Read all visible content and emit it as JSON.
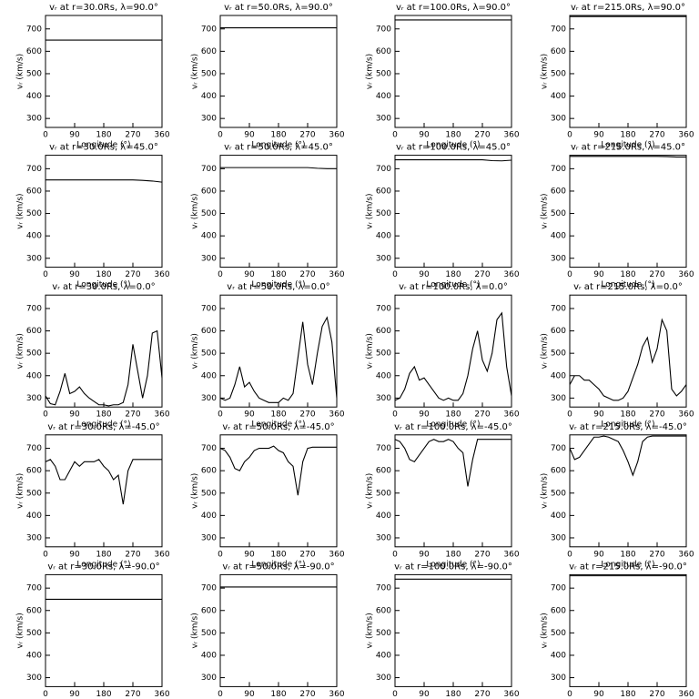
{
  "chart_data": [
    {
      "type": "line",
      "title": "vᵣ at r=30.0Rs, λ=90.0°",
      "xlabel": "Longitude (°)",
      "ylabel": "vᵣ (km/s)",
      "x": [
        0,
        360
      ],
      "values": [
        650,
        650
      ],
      "color": "#000000",
      "xlim": [
        0,
        360
      ],
      "ylim": [
        260,
        760
      ],
      "xticks": [
        0,
        90,
        180,
        270,
        360
      ],
      "yticks": [
        300,
        400,
        500,
        600,
        700
      ]
    },
    {
      "type": "line",
      "title": "vᵣ at r=50.0Rs, λ=90.0°",
      "xlabel": "Longitude (°)",
      "ylabel": "vᵣ (km/s)",
      "x": [
        0,
        360
      ],
      "values": [
        705,
        705
      ],
      "color": "#000000",
      "xlim": [
        0,
        360
      ],
      "ylim": [
        260,
        760
      ],
      "xticks": [
        0,
        90,
        180,
        270,
        360
      ],
      "yticks": [
        300,
        400,
        500,
        600,
        700
      ]
    },
    {
      "type": "line",
      "title": "vᵣ at r=100.0Rs, λ=90.0°",
      "xlabel": "Longitude (°)",
      "ylabel": "vᵣ (km/s)",
      "x": [
        0,
        360
      ],
      "values": [
        740,
        740
      ],
      "color": "#000000",
      "xlim": [
        0,
        360
      ],
      "ylim": [
        260,
        760
      ],
      "xticks": [
        0,
        90,
        180,
        270,
        360
      ],
      "yticks": [
        300,
        400,
        500,
        600,
        700
      ]
    },
    {
      "type": "line",
      "title": "vᵣ at r=215.0Rs, λ=90.0°",
      "xlabel": "Longitude (°)",
      "ylabel": "vᵣ (km/s)",
      "x": [
        0,
        360
      ],
      "values": [
        755,
        755
      ],
      "color": "#000000",
      "xlim": [
        0,
        360
      ],
      "ylim": [
        260,
        760
      ],
      "xticks": [
        0,
        90,
        180,
        270,
        360
      ],
      "yticks": [
        300,
        400,
        500,
        600,
        700
      ]
    },
    {
      "type": "line",
      "title": "vᵣ at r=30.0Rs, λ=45.0°",
      "xlabel": "Longitude (°)",
      "ylabel": "vᵣ (km/s)",
      "x": [
        0,
        90,
        180,
        270,
        300,
        330,
        360
      ],
      "values": [
        650,
        650,
        650,
        650,
        648,
        645,
        640
      ],
      "color": "#000000",
      "xlim": [
        0,
        360
      ],
      "ylim": [
        260,
        760
      ],
      "xticks": [
        0,
        90,
        180,
        270,
        360
      ],
      "yticks": [
        300,
        400,
        500,
        600,
        700
      ]
    },
    {
      "type": "line",
      "title": "vᵣ at r=50.0Rs, λ=45.0°",
      "xlabel": "Longitude (°)",
      "ylabel": "vᵣ (km/s)",
      "x": [
        0,
        90,
        180,
        270,
        300,
        330,
        360
      ],
      "values": [
        705,
        705,
        705,
        705,
        702,
        700,
        700
      ],
      "color": "#000000",
      "xlim": [
        0,
        360
      ],
      "ylim": [
        260,
        760
      ],
      "xticks": [
        0,
        90,
        180,
        270,
        360
      ],
      "yticks": [
        300,
        400,
        500,
        600,
        700
      ]
    },
    {
      "type": "line",
      "title": "vᵣ at r=100.0Rs, λ=45.0°",
      "xlabel": "Longitude (°)",
      "ylabel": "vᵣ (km/s)",
      "x": [
        0,
        90,
        180,
        270,
        300,
        330,
        360
      ],
      "values": [
        740,
        740,
        740,
        740,
        736,
        735,
        738
      ],
      "color": "#000000",
      "xlim": [
        0,
        360
      ],
      "ylim": [
        260,
        760
      ],
      "xticks": [
        0,
        90,
        180,
        270,
        360
      ],
      "yticks": [
        300,
        400,
        500,
        600,
        700
      ]
    },
    {
      "type": "line",
      "title": "vᵣ at r=215.0Rs, λ=45.0°",
      "xlabel": "Longitude (°)",
      "ylabel": "vᵣ (km/s)",
      "x": [
        0,
        90,
        180,
        270,
        300,
        330,
        360
      ],
      "values": [
        755,
        755,
        755,
        755,
        754,
        752,
        752
      ],
      "color": "#000000",
      "xlim": [
        0,
        360
      ],
      "ylim": [
        260,
        760
      ],
      "xticks": [
        0,
        90,
        180,
        270,
        360
      ],
      "yticks": [
        300,
        400,
        500,
        600,
        700
      ]
    },
    {
      "type": "line",
      "title": "vᵣ at r=30.0Rs, λ=0.0°",
      "xlabel": "Longitude (°)",
      "ylabel": "vᵣ (km/s)",
      "x": [
        0,
        15,
        30,
        45,
        60,
        75,
        90,
        105,
        120,
        135,
        150,
        165,
        180,
        195,
        210,
        225,
        240,
        255,
        270,
        285,
        300,
        315,
        330,
        345,
        360
      ],
      "values": [
        310,
        275,
        270,
        330,
        410,
        320,
        330,
        350,
        320,
        300,
        285,
        270,
        270,
        265,
        270,
        270,
        280,
        360,
        540,
        420,
        300,
        400,
        590,
        600,
        390
      ],
      "color": "#000000",
      "xlim": [
        0,
        360
      ],
      "ylim": [
        260,
        760
      ],
      "xticks": [
        0,
        90,
        180,
        270,
        360
      ],
      "yticks": [
        300,
        400,
        500,
        600,
        700
      ]
    },
    {
      "type": "line",
      "title": "vᵣ at r=50.0Rs, λ=0.0°",
      "xlabel": "Longitude (°)",
      "ylabel": "vᵣ (km/s)",
      "x": [
        0,
        15,
        30,
        45,
        60,
        75,
        90,
        105,
        120,
        135,
        150,
        165,
        180,
        195,
        210,
        225,
        240,
        255,
        270,
        285,
        300,
        315,
        330,
        345,
        360
      ],
      "values": [
        300,
        290,
        300,
        360,
        440,
        350,
        370,
        330,
        300,
        290,
        280,
        280,
        280,
        300,
        290,
        320,
        480,
        640,
        450,
        360,
        500,
        620,
        660,
        550,
        300
      ],
      "color": "#000000",
      "xlim": [
        0,
        360
      ],
      "ylim": [
        260,
        760
      ],
      "xticks": [
        0,
        90,
        180,
        270,
        360
      ],
      "yticks": [
        300,
        400,
        500,
        600,
        700
      ]
    },
    {
      "type": "line",
      "title": "vᵣ at r=100.0Rs, λ=0.0°",
      "xlabel": "Longitude (°)",
      "ylabel": "vᵣ (km/s)",
      "x": [
        0,
        15,
        30,
        45,
        60,
        75,
        90,
        105,
        120,
        135,
        150,
        165,
        180,
        195,
        210,
        225,
        240,
        255,
        270,
        285,
        300,
        315,
        330,
        345,
        360
      ],
      "values": [
        290,
        300,
        340,
        410,
        440,
        380,
        390,
        360,
        330,
        300,
        290,
        300,
        290,
        290,
        320,
        400,
        520,
        600,
        470,
        420,
        500,
        650,
        680,
        440,
        310
      ],
      "color": "#000000",
      "xlim": [
        0,
        360
      ],
      "ylim": [
        260,
        760
      ],
      "xticks": [
        0,
        90,
        180,
        270,
        360
      ],
      "yticks": [
        300,
        400,
        500,
        600,
        700
      ]
    },
    {
      "type": "line",
      "title": "vᵣ at r=215.0Rs, λ=0.0°",
      "xlabel": "Longitude (°)",
      "ylabel": "vᵣ (km/s)",
      "x": [
        0,
        15,
        30,
        45,
        60,
        75,
        90,
        105,
        120,
        135,
        150,
        165,
        180,
        195,
        210,
        225,
        240,
        255,
        270,
        285,
        300,
        315,
        330,
        345,
        360
      ],
      "values": [
        360,
        400,
        400,
        380,
        380,
        360,
        340,
        310,
        300,
        290,
        290,
        300,
        330,
        390,
        450,
        530,
        570,
        460,
        520,
        650,
        600,
        340,
        310,
        330,
        360
      ],
      "color": "#000000",
      "xlim": [
        0,
        360
      ],
      "ylim": [
        260,
        760
      ],
      "xticks": [
        0,
        90,
        180,
        270,
        360
      ],
      "yticks": [
        300,
        400,
        500,
        600,
        700
      ]
    },
    {
      "type": "line",
      "title": "vᵣ at r=30.0Rs, λ=-45.0°",
      "xlabel": "Longitude (°)",
      "ylabel": "vᵣ (km/s)",
      "x": [
        0,
        15,
        30,
        45,
        60,
        75,
        90,
        105,
        120,
        135,
        150,
        165,
        180,
        195,
        210,
        225,
        240,
        255,
        270,
        360
      ],
      "values": [
        640,
        650,
        620,
        560,
        560,
        600,
        640,
        620,
        640,
        640,
        640,
        650,
        620,
        600,
        560,
        580,
        450,
        600,
        650,
        650
      ],
      "color": "#000000",
      "xlim": [
        0,
        360
      ],
      "ylim": [
        260,
        760
      ],
      "xticks": [
        0,
        90,
        180,
        270,
        360
      ],
      "yticks": [
        300,
        400,
        500,
        600,
        700
      ]
    },
    {
      "type": "line",
      "title": "vᵣ at r=50.0Rs, λ=-45.0°",
      "xlabel": "Longitude (°)",
      "ylabel": "vᵣ (km/s)",
      "x": [
        0,
        15,
        30,
        45,
        60,
        75,
        90,
        105,
        120,
        135,
        150,
        165,
        180,
        195,
        210,
        225,
        240,
        255,
        270,
        285,
        360
      ],
      "values": [
        700,
        690,
        660,
        610,
        600,
        640,
        660,
        690,
        700,
        700,
        700,
        710,
        690,
        680,
        640,
        620,
        490,
        640,
        700,
        705,
        705
      ],
      "color": "#000000",
      "xlim": [
        0,
        360
      ],
      "ylim": [
        260,
        760
      ],
      "xticks": [
        0,
        90,
        180,
        270,
        360
      ],
      "yticks": [
        300,
        400,
        500,
        600,
        700
      ]
    },
    {
      "type": "line",
      "title": "vᵣ at r=100.0Rs, λ=-45.0°",
      "xlabel": "Longitude (°)",
      "ylabel": "vᵣ (km/s)",
      "x": [
        0,
        15,
        30,
        45,
        60,
        75,
        90,
        105,
        120,
        135,
        150,
        165,
        180,
        195,
        210,
        225,
        240,
        255,
        360
      ],
      "values": [
        740,
        730,
        700,
        650,
        640,
        670,
        700,
        730,
        740,
        730,
        730,
        740,
        730,
        700,
        680,
        530,
        650,
        740,
        740
      ],
      "color": "#000000",
      "xlim": [
        0,
        360
      ],
      "ylim": [
        260,
        760
      ],
      "xticks": [
        0,
        90,
        180,
        270,
        360
      ],
      "yticks": [
        300,
        400,
        500,
        600,
        700
      ]
    },
    {
      "type": "line",
      "title": "vᵣ at r=215.0Rs, λ=-45.0°",
      "xlabel": "Longitude (°)",
      "ylabel": "vᵣ (km/s)",
      "x": [
        0,
        15,
        30,
        45,
        60,
        75,
        90,
        105,
        120,
        135,
        150,
        165,
        180,
        195,
        210,
        225,
        240,
        255,
        360
      ],
      "values": [
        700,
        650,
        660,
        690,
        720,
        750,
        750,
        755,
        750,
        740,
        730,
        690,
        640,
        580,
        640,
        730,
        750,
        755,
        755
      ],
      "color": "#000000",
      "xlim": [
        0,
        360
      ],
      "ylim": [
        260,
        760
      ],
      "xticks": [
        0,
        90,
        180,
        270,
        360
      ],
      "yticks": [
        300,
        400,
        500,
        600,
        700
      ]
    },
    {
      "type": "line",
      "title": "vᵣ at r=30.0Rs, λ=-90.0°",
      "xlabel": "Longitude (°)",
      "ylabel": "vᵣ (km/s)",
      "x": [
        0,
        360
      ],
      "values": [
        650,
        650
      ],
      "color": "#000000",
      "xlim": [
        0,
        360
      ],
      "ylim": [
        260,
        760
      ],
      "xticks": [
        0,
        90,
        180,
        270,
        360
      ],
      "yticks": [
        300,
        400,
        500,
        600,
        700
      ]
    },
    {
      "type": "line",
      "title": "vᵣ at r=50.0Rs, λ=-90.0°",
      "xlabel": "Longitude (°)",
      "ylabel": "vᵣ (km/s)",
      "x": [
        0,
        360
      ],
      "values": [
        705,
        705
      ],
      "color": "#000000",
      "xlim": [
        0,
        360
      ],
      "ylim": [
        260,
        760
      ],
      "xticks": [
        0,
        90,
        180,
        270,
        360
      ],
      "yticks": [
        300,
        400,
        500,
        600,
        700
      ]
    },
    {
      "type": "line",
      "title": "vᵣ at r=100.0Rs, λ=-90.0°",
      "xlabel": "Longitude (°)",
      "ylabel": "vᵣ (km/s)",
      "x": [
        0,
        360
      ],
      "values": [
        740,
        740
      ],
      "color": "#000000",
      "xlim": [
        0,
        360
      ],
      "ylim": [
        260,
        760
      ],
      "xticks": [
        0,
        90,
        180,
        270,
        360
      ],
      "yticks": [
        300,
        400,
        500,
        600,
        700
      ]
    },
    {
      "type": "line",
      "title": "vᵣ at r=215.0Rs, λ=-90.0°",
      "xlabel": "Longitude (°)",
      "ylabel": "vᵣ (km/s)",
      "x": [
        0,
        360
      ],
      "values": [
        755,
        755
      ],
      "color": "#000000",
      "xlim": [
        0,
        360
      ],
      "ylim": [
        260,
        760
      ],
      "xticks": [
        0,
        90,
        180,
        270,
        360
      ],
      "yticks": [
        300,
        400,
        500,
        600,
        700
      ]
    }
  ]
}
